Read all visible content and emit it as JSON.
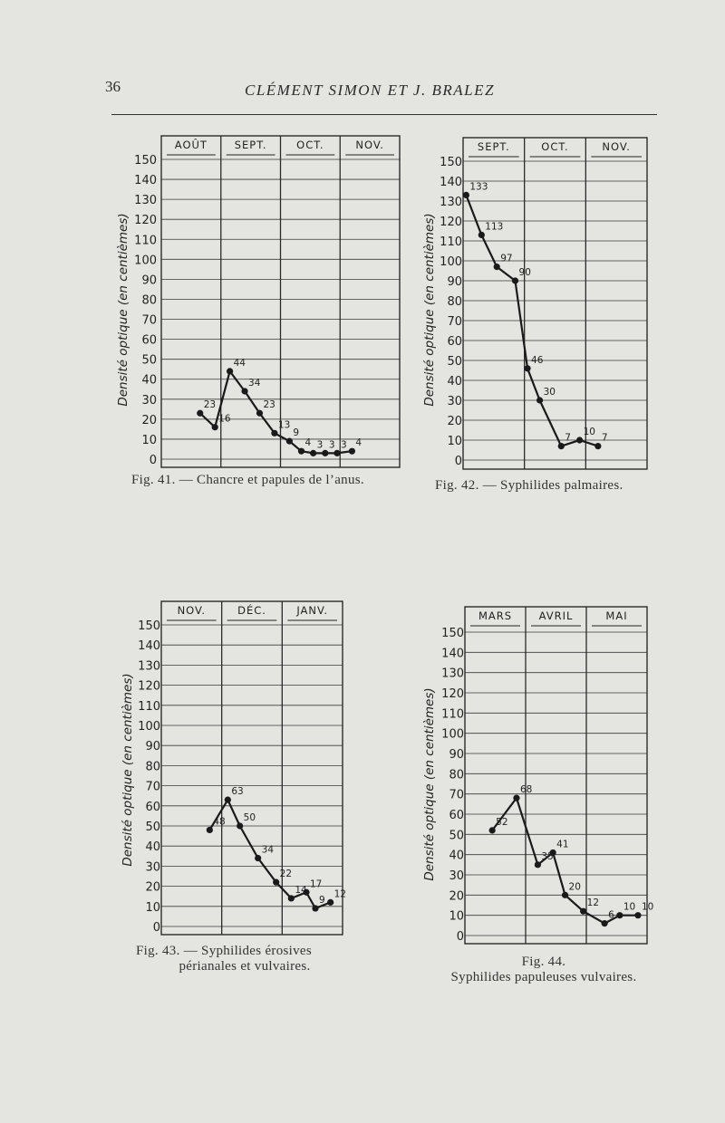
{
  "page": {
    "number": "36",
    "running_head": "CLÉMENT SIMON ET J. BRALEZ"
  },
  "chart_data": [
    {
      "type": "line",
      "figure": "Fig. 41.",
      "caption_lines": [
        "Fig. 41. — Chancre et papules de l’anus."
      ],
      "ylabel": "Densité optique (en centièmes)",
      "yticks": [
        0,
        10,
        20,
        30,
        40,
        50,
        60,
        70,
        80,
        90,
        100,
        110,
        120,
        130,
        140,
        150
      ],
      "ylim": [
        0,
        150
      ],
      "months": [
        "AOÛT",
        "SEPT.",
        "OCT.",
        "NOV."
      ],
      "grid": true,
      "series": [
        {
          "points": [
            [
              0.65,
              23
            ],
            [
              0.9,
              16
            ],
            [
              1.15,
              44
            ],
            [
              1.4,
              34
            ],
            [
              1.65,
              23
            ],
            [
              1.9,
              13
            ],
            [
              2.15,
              9
            ],
            [
              2.35,
              4
            ],
            [
              2.55,
              3
            ],
            [
              2.75,
              3
            ],
            [
              2.95,
              3
            ],
            [
              3.2,
              4
            ]
          ]
        }
      ]
    },
    {
      "type": "line",
      "figure": "Fig. 42.",
      "caption_lines": [
        "Fig. 42. — Syphilides palmaires."
      ],
      "ylabel": "Densité optique (en centièmes)",
      "yticks": [
        0,
        10,
        20,
        30,
        40,
        50,
        60,
        70,
        80,
        90,
        100,
        110,
        120,
        130,
        140,
        150
      ],
      "ylim": [
        0,
        150
      ],
      "months": [
        "SEPT.",
        "OCT.",
        "NOV."
      ],
      "grid": true,
      "series": [
        {
          "points": [
            [
              0.05,
              133
            ],
            [
              0.3,
              113
            ],
            [
              0.55,
              97
            ],
            [
              0.85,
              90
            ],
            [
              1.05,
              46
            ],
            [
              1.25,
              30
            ],
            [
              1.6,
              7
            ],
            [
              1.9,
              10
            ],
            [
              2.2,
              7
            ]
          ]
        }
      ]
    },
    {
      "type": "line",
      "figure": "Fig. 43.",
      "caption_lines": [
        "Fig. 43. — Syphilides érosives",
        "périanales et vulvaires."
      ],
      "ylabel": "Densité optique (en centièmes)",
      "yticks": [
        0,
        10,
        20,
        30,
        40,
        50,
        60,
        70,
        80,
        90,
        100,
        110,
        120,
        130,
        140,
        150
      ],
      "ylim": [
        0,
        150
      ],
      "months": [
        "NOV.",
        "DÉC.",
        "JANV."
      ],
      "grid": true,
      "series": [
        {
          "points": [
            [
              0.8,
              48
            ],
            [
              1.1,
              63
            ],
            [
              1.3,
              50
            ],
            [
              1.6,
              34
            ],
            [
              1.9,
              22
            ],
            [
              2.15,
              14
            ],
            [
              2.4,
              17
            ],
            [
              2.55,
              9
            ],
            [
              2.8,
              12
            ]
          ]
        }
      ]
    },
    {
      "type": "line",
      "figure": "Fig. 44.",
      "caption_lines": [
        "Fig. 44.",
        "Syphilides papuleuses vulvaires."
      ],
      "ylabel": "Densité optique (en centièmes)",
      "yticks": [
        0,
        10,
        20,
        30,
        40,
        50,
        60,
        70,
        80,
        90,
        100,
        110,
        120,
        130,
        140,
        150
      ],
      "ylim": [
        0,
        150
      ],
      "months": [
        "MARS",
        "AVRIL",
        "MAI"
      ],
      "grid": true,
      "series": [
        {
          "points": [
            [
              0.45,
              52
            ],
            [
              0.85,
              68
            ],
            [
              1.2,
              35
            ],
            [
              1.45,
              41
            ],
            [
              1.65,
              20
            ],
            [
              1.95,
              12
            ],
            [
              2.3,
              6
            ],
            [
              2.55,
              10
            ],
            [
              2.85,
              10
            ]
          ]
        }
      ]
    }
  ]
}
